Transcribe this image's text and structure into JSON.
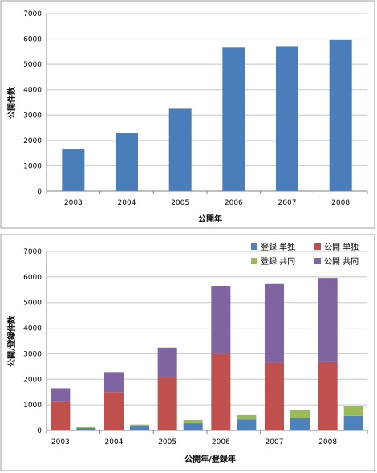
{
  "chart_data": [
    {
      "type": "bar",
      "categories": [
        "2003",
        "2004",
        "2005",
        "2006",
        "2007",
        "2008"
      ],
      "values": [
        1650,
        2290,
        3250,
        5660,
        5720,
        5960
      ],
      "xlabel": "公開年",
      "ylabel": "公開件数",
      "ylim": [
        0,
        7000
      ],
      "yticks": [
        "0",
        "1000",
        "2000",
        "3000",
        "4000",
        "5000",
        "6000",
        "7000"
      ],
      "grid": true,
      "colors": {
        "bar": "#4a7ebb"
      }
    },
    {
      "type": "bar",
      "stacked": true,
      "categories": [
        "2003",
        "2004",
        "2005",
        "2006",
        "2007",
        "2008"
      ],
      "series": [
        {
          "name": "公開 単独",
          "group": "公開",
          "values": [
            1150,
            1500,
            2070,
            3000,
            2650,
            2680
          ],
          "color": "#c0504d"
        },
        {
          "name": "公開 共同",
          "group": "公開",
          "values": [
            500,
            780,
            1170,
            2650,
            3070,
            3280
          ],
          "color": "#8064a2"
        },
        {
          "name": "登録 単独",
          "group": "登録",
          "values": [
            100,
            180,
            280,
            430,
            480,
            570
          ],
          "color": "#4f81bd"
        },
        {
          "name": "登録 共同",
          "group": "登録",
          "values": [
            30,
            50,
            130,
            170,
            320,
            380
          ],
          "color": "#9bbb59"
        }
      ],
      "legend": [
        "登録 単独",
        "公開 単独",
        "登録 共同",
        "公開 共同"
      ],
      "legend_position": "top-right",
      "xlabel": "公開年/登録年",
      "ylabel": "公開/登録件数",
      "ylim": [
        0,
        7000
      ],
      "yticks": [
        "0",
        "1000",
        "2000",
        "3000",
        "4000",
        "5000",
        "6000",
        "7000"
      ],
      "grid": true
    }
  ]
}
